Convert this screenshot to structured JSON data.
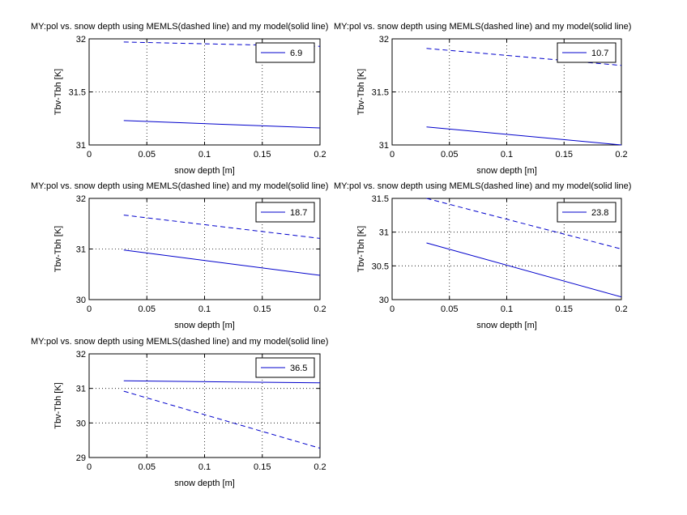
{
  "figure": {
    "background": "#ffffff",
    "line_color": "#0000cc"
  },
  "chart_data": [
    {
      "type": "line",
      "title": "MY:pol vs. snow depth using MEMLS(dashed line) and my model(solid line)",
      "xlabel": "snow depth [m]",
      "ylabel": "Tbv-Tbh [K]",
      "xlim": [
        0,
        0.2
      ],
      "ylim": [
        31,
        32
      ],
      "xticks": [
        "0",
        "0.05",
        "0.1",
        "0.15",
        "0.2"
      ],
      "yticks": [
        "31",
        "31.5",
        "32"
      ],
      "grid": true,
      "legend": {
        "entries": [
          "6.9"
        ],
        "placement": "top-right"
      },
      "series": [
        {
          "style": "dashed",
          "x": [
            0.03,
            0.2
          ],
          "y": [
            31.97,
            31.93
          ]
        },
        {
          "style": "solid",
          "x": [
            0.03,
            0.2
          ],
          "y": [
            31.23,
            31.16
          ]
        }
      ]
    },
    {
      "type": "line",
      "title": "MY:pol vs. snow depth using MEMLS(dashed line) and my model(solid line)",
      "xlabel": "snow depth [m]",
      "ylabel": "Tbv-Tbh [K]",
      "xlim": [
        0,
        0.2
      ],
      "ylim": [
        31,
        32
      ],
      "xticks": [
        "0",
        "0.05",
        "0.1",
        "0.15",
        "0.2"
      ],
      "yticks": [
        "31",
        "31.5",
        "32"
      ],
      "grid": true,
      "legend": {
        "entries": [
          "10.7"
        ],
        "placement": "top-right"
      },
      "series": [
        {
          "style": "dashed",
          "x": [
            0.03,
            0.2
          ],
          "y": [
            31.91,
            31.75
          ]
        },
        {
          "style": "solid",
          "x": [
            0.03,
            0.2
          ],
          "y": [
            31.17,
            31.0
          ]
        }
      ]
    },
    {
      "type": "line",
      "title": "MY:pol vs. snow depth using MEMLS(dashed line) and my model(solid line)",
      "xlabel": "snow depth [m]",
      "ylabel": "Tbv-Tbh [K]",
      "xlim": [
        0,
        0.2
      ],
      "ylim": [
        30,
        32
      ],
      "xticks": [
        "0",
        "0.05",
        "0.1",
        "0.15",
        "0.2"
      ],
      "yticks": [
        "30",
        "31",
        "32"
      ],
      "grid": true,
      "legend": {
        "entries": [
          "18.7"
        ],
        "placement": "top-right"
      },
      "series": [
        {
          "style": "dashed",
          "x": [
            0.03,
            0.2
          ],
          "y": [
            31.67,
            31.21
          ]
        },
        {
          "style": "solid",
          "x": [
            0.03,
            0.2
          ],
          "y": [
            30.98,
            30.48
          ]
        }
      ]
    },
    {
      "type": "line",
      "title": "MY:pol vs. snow depth using MEMLS(dashed line) and my model(solid line)",
      "xlabel": "snow depth [m]",
      "ylabel": "Tbv-Tbh [K]",
      "xlim": [
        0,
        0.2
      ],
      "ylim": [
        30,
        31.5
      ],
      "xticks": [
        "0",
        "0.05",
        "0.1",
        "0.15",
        "0.2"
      ],
      "yticks": [
        "30",
        "30.5",
        "31",
        "31.5"
      ],
      "grid": true,
      "legend": {
        "entries": [
          "23.8"
        ],
        "placement": "top-right"
      },
      "series": [
        {
          "style": "dashed",
          "x": [
            0.03,
            0.2
          ],
          "y": [
            31.5,
            30.75
          ]
        },
        {
          "style": "solid",
          "x": [
            0.03,
            0.2
          ],
          "y": [
            30.84,
            30.04
          ]
        }
      ]
    },
    {
      "type": "line",
      "title": "MY:pol vs. snow depth using MEMLS(dashed line) and my model(solid line)",
      "xlabel": "snow depth [m]",
      "ylabel": "Tbv-Tbh [K]",
      "xlim": [
        0,
        0.2
      ],
      "ylim": [
        29,
        32
      ],
      "xticks": [
        "0",
        "0.05",
        "0.1",
        "0.15",
        "0.2"
      ],
      "yticks": [
        "29",
        "30",
        "31",
        "32"
      ],
      "grid": true,
      "legend": {
        "entries": [
          "36.5"
        ],
        "placement": "top-right"
      },
      "series": [
        {
          "style": "dashed",
          "x": [
            0.03,
            0.2
          ],
          "y": [
            30.92,
            29.27
          ]
        },
        {
          "style": "solid",
          "x": [
            0.03,
            0.2
          ],
          "y": [
            31.22,
            31.16
          ]
        }
      ]
    }
  ]
}
